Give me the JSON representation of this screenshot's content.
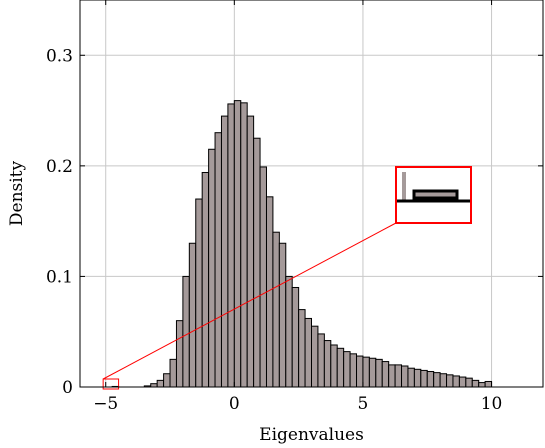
{
  "chart_data": {
    "type": "histogram",
    "xlabel": "Eigenvalues",
    "ylabel": "Density",
    "xlim": [
      -6,
      12
    ],
    "ylim": [
      0,
      0.35
    ],
    "x_ticks": [
      -5,
      0,
      5,
      10
    ],
    "x_tick_labels": [
      "−5",
      "0",
      "5",
      "10"
    ],
    "y_ticks": [
      0,
      0.1,
      0.2,
      0.3
    ],
    "y_tick_labels": [
      "0",
      "0.1",
      "0.2",
      "0.3"
    ],
    "grid": true,
    "bar_color": "#a59a9a",
    "bar_edge_color": "#000000",
    "bin_width": 0.25,
    "bins": [
      {
        "x0": -4.75,
        "value": 0.0005
      },
      {
        "x0": -3.5,
        "value": 0.001
      },
      {
        "x0": -3.25,
        "value": 0.003
      },
      {
        "x0": -3.0,
        "value": 0.006
      },
      {
        "x0": -2.75,
        "value": 0.012
      },
      {
        "x0": -2.5,
        "value": 0.025
      },
      {
        "x0": -2.25,
        "value": 0.06
      },
      {
        "x0": -2.0,
        "value": 0.1
      },
      {
        "x0": -1.75,
        "value": 0.13
      },
      {
        "x0": -1.5,
        "value": 0.17
      },
      {
        "x0": -1.25,
        "value": 0.194
      },
      {
        "x0": -1.0,
        "value": 0.215
      },
      {
        "x0": -0.75,
        "value": 0.23
      },
      {
        "x0": -0.5,
        "value": 0.245
      },
      {
        "x0": -0.25,
        "value": 0.256
      },
      {
        "x0": 0.0,
        "value": 0.259
      },
      {
        "x0": 0.25,
        "value": 0.257
      },
      {
        "x0": 0.5,
        "value": 0.245
      },
      {
        "x0": 0.75,
        "value": 0.225
      },
      {
        "x0": 1.0,
        "value": 0.199
      },
      {
        "x0": 1.25,
        "value": 0.172
      },
      {
        "x0": 1.5,
        "value": 0.14
      },
      {
        "x0": 1.75,
        "value": 0.13
      },
      {
        "x0": 2.0,
        "value": 0.1
      },
      {
        "x0": 2.25,
        "value": 0.09
      },
      {
        "x0": 2.5,
        "value": 0.07
      },
      {
        "x0": 2.75,
        "value": 0.062
      },
      {
        "x0": 3.0,
        "value": 0.055
      },
      {
        "x0": 3.25,
        "value": 0.048
      },
      {
        "x0": 3.5,
        "value": 0.042
      },
      {
        "x0": 3.75,
        "value": 0.038
      },
      {
        "x0": 4.0,
        "value": 0.035
      },
      {
        "x0": 4.25,
        "value": 0.032
      },
      {
        "x0": 4.5,
        "value": 0.03
      },
      {
        "x0": 4.75,
        "value": 0.028
      },
      {
        "x0": 5.0,
        "value": 0.027
      },
      {
        "x0": 5.25,
        "value": 0.026
      },
      {
        "x0": 5.5,
        "value": 0.025
      },
      {
        "x0": 5.75,
        "value": 0.023
      },
      {
        "x0": 6.0,
        "value": 0.02
      },
      {
        "x0": 6.25,
        "value": 0.02
      },
      {
        "x0": 6.5,
        "value": 0.019
      },
      {
        "x0": 6.75,
        "value": 0.017
      },
      {
        "x0": 7.0,
        "value": 0.016
      },
      {
        "x0": 7.25,
        "value": 0.015
      },
      {
        "x0": 7.5,
        "value": 0.014
      },
      {
        "x0": 7.75,
        "value": 0.013
      },
      {
        "x0": 8.0,
        "value": 0.012
      },
      {
        "x0": 8.25,
        "value": 0.011
      },
      {
        "x0": 8.5,
        "value": 0.01
      },
      {
        "x0": 8.75,
        "value": 0.009
      },
      {
        "x0": 9.0,
        "value": 0.008
      },
      {
        "x0": 9.25,
        "value": 0.006
      },
      {
        "x0": 9.5,
        "value": 0.004
      },
      {
        "x0": 9.75,
        "value": 0.005
      }
    ],
    "zoom_inset": {
      "source_x_range": [
        -5.1,
        -4.5
      ],
      "source_y_range": [
        0,
        0.004
      ],
      "highlight_color": "#ff0000"
    }
  }
}
